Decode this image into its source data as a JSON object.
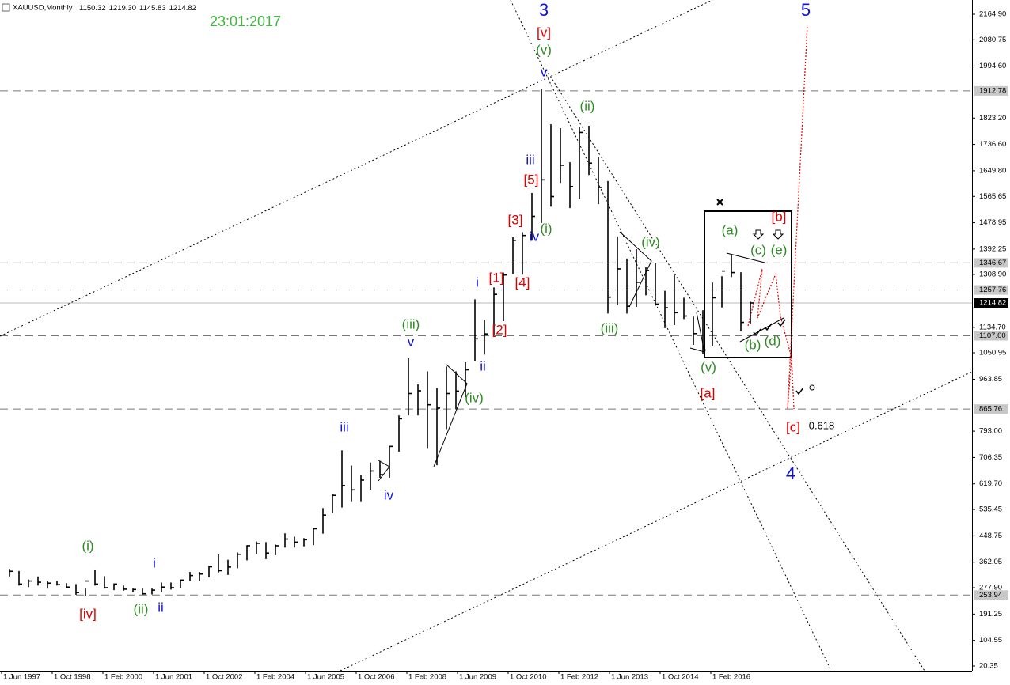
{
  "chart_data": {
    "type": "ohlc",
    "symbol": "XAUUSD,Monthly",
    "header_values": [
      "1150.32",
      "1219.30",
      "1145.83",
      "1214.82"
    ],
    "color": "#000000",
    "xlim": [
      "1 Jun 1997",
      "1 Dec 2022"
    ],
    "xticks": [
      "1 Jun 1997",
      "1 Oct 1998",
      "1 Feb 2000",
      "1 Jun 2001",
      "1 Oct 2002",
      "1 Feb 2004",
      "1 Jun 2005",
      "1 Oct 2006",
      "1 Feb 2008",
      "1 Jun 2009",
      "1 Oct 2010",
      "1 Feb 2012",
      "1 Jun 2013",
      "1 Oct 2014",
      "1 Feb 2016"
    ],
    "ylim": [
      4.74,
      2211.75
    ],
    "yticks": [
      {
        "value": 2164.9,
        "label": "2164.90"
      },
      {
        "value": 2080.75,
        "label": "2080.75"
      },
      {
        "value": 1994.6,
        "label": "1994.60"
      },
      {
        "value": 1823.2,
        "label": "1823.20"
      },
      {
        "value": 1736.6,
        "label": "1736.60"
      },
      {
        "value": 1649.8,
        "label": "1649.80"
      },
      {
        "value": 1565.65,
        "label": "1565.65"
      },
      {
        "value": 1478.95,
        "label": "1478.95"
      },
      {
        "value": 1392.25,
        "label": "1392.25"
      },
      {
        "value": 1308.9,
        "label": "1308.90"
      },
      {
        "value": 1134.7,
        "label": "1134.70"
      },
      {
        "value": 1050.95,
        "label": "1050.95"
      },
      {
        "value": 963.85,
        "label": "963.85"
      },
      {
        "value": 793,
        "label": "793.00"
      },
      {
        "value": 706.35,
        "label": "706.35"
      },
      {
        "value": 619.7,
        "label": "619.70"
      },
      {
        "value": 535.45,
        "label": "535.45"
      },
      {
        "value": 448.75,
        "label": "448.75"
      },
      {
        "value": 362.05,
        "label": "362.05"
      },
      {
        "value": 277.9,
        "label": "277.90"
      },
      {
        "value": 191.25,
        "label": "191.25"
      },
      {
        "value": 104.55,
        "label": "104.55"
      },
      {
        "value": 20.35,
        "label": "20.35"
      }
    ],
    "levels": [
      {
        "value": 1912.78,
        "label": "1912.78"
      },
      {
        "value": 1346.67,
        "label": "1346.67"
      },
      {
        "value": 1257.76,
        "label": "1257.76"
      },
      {
        "value": 1107,
        "label": "1107.00"
      },
      {
        "value": 865.76,
        "label": "865.76"
      },
      {
        "value": 253.94,
        "label": "253.94"
      }
    ],
    "current_price": {
      "value": 1214.82,
      "label": "1214.82"
    },
    "x": [
      "1 Jul 1997",
      "1 Oct 1997",
      "1 Jan 1998",
      "1 Apr 1998",
      "1 Jul 1998",
      "1 Oct 1998",
      "1 Jan 1999",
      "1 Apr 1999",
      "1 Jul 1999",
      "1 Oct 1999",
      "1 Jan 2000",
      "1 Apr 2000",
      "1 Jul 2000",
      "1 Oct 2000",
      "1 Jan 2001",
      "1 Apr 2001",
      "1 Jul 2001",
      "1 Oct 2001",
      "1 Jan 2002",
      "1 Apr 2002",
      "1 Jul 2002",
      "1 Oct 2002",
      "1 Jan 2003",
      "1 Apr 2003",
      "1 Jul 2003",
      "1 Oct 2003",
      "1 Jan 2004",
      "1 Apr 2004",
      "1 Jul 2004",
      "1 Oct 2004",
      "1 Jan 2005",
      "1 Apr 2005",
      "1 Jul 2005",
      "1 Oct 2005",
      "1 Jan 2006",
      "1 Apr 2006",
      "1 Jul 2006",
      "1 Oct 2006",
      "1 Jan 2007",
      "1 Apr 2007",
      "1 Jul 2007",
      "1 Oct 2007",
      "1 Jan 2008",
      "1 Apr 2008",
      "1 Jul 2008",
      "1 Oct 2008",
      "1 Jan 2009",
      "1 Apr 2009",
      "1 Jul 2009",
      "1 Oct 2009",
      "1 Jan 2010",
      "1 Apr 2010",
      "1 Jul 2010",
      "1 Oct 2010",
      "1 Jan 2011",
      "1 Apr 2011",
      "1 Jul 2011",
      "1 Oct 2011",
      "1 Jan 2012",
      "1 Apr 2012",
      "1 Jul 2012",
      "1 Oct 2012",
      "1 Jan 2013",
      "1 Apr 2013",
      "1 Jul 2013",
      "1 Oct 2013",
      "1 Jan 2014",
      "1 Apr 2014",
      "1 Jul 2014",
      "1 Oct 2014",
      "1 Jan 2015",
      "1 Apr 2015",
      "1 Jul 2015",
      "1 Oct 2015",
      "1 Jan 2016",
      "1 Apr 2016",
      "1 Jul 2016",
      "1 Oct 2016",
      "1 Jan 2017"
    ],
    "high": [
      340,
      333,
      305,
      315,
      300,
      300,
      293,
      290,
      275,
      338,
      316,
      292,
      285,
      275,
      275,
      275,
      295,
      295,
      305,
      330,
      330,
      350,
      388,
      370,
      394,
      418,
      430,
      428,
      420,
      457,
      446,
      441,
      475,
      540,
      585,
      730,
      680,
      650,
      690,
      695,
      745,
      845,
      1033,
      947,
      990,
      935,
      1006,
      990,
      1020,
      1227,
      1160,
      1266,
      1315,
      1431,
      1448,
      1577,
      1920,
      1803,
      1790,
      1678,
      1795,
      1798,
      1696,
      1616,
      1434,
      1361,
      1392,
      1332,
      1345,
      1255,
      1307,
      1232,
      1170,
      1191,
      1282,
      1303,
      1375,
      1316,
      1219
    ],
    "low": [
      315,
      285,
      280,
      285,
      275,
      285,
      278,
      255,
      252,
      285,
      275,
      270,
      268,
      263,
      255,
      256,
      265,
      272,
      278,
      300,
      300,
      312,
      328,
      320,
      342,
      368,
      390,
      372,
      385,
      410,
      410,
      414,
      418,
      456,
      524,
      542,
      560,
      560,
      600,
      640,
      640,
      725,
      845,
      845,
      735,
      681,
      800,
      865,
      905,
      1025,
      1045,
      1110,
      1155,
      1310,
      1308,
      1420,
      1478,
      1532,
      1610,
      1527,
      1557,
      1636,
      1540,
      1180,
      1207,
      1180,
      1202,
      1240,
      1206,
      1132,
      1142,
      1162,
      1077,
      1046,
      1072,
      1200,
      1300,
      1122,
      1145
    ],
    "close": [
      332,
      290,
      300,
      296,
      293,
      288,
      280,
      262,
      300,
      290,
      278,
      290,
      273,
      272,
      258,
      270,
      280,
      278,
      303,
      318,
      323,
      347,
      334,
      346,
      388,
      416,
      424,
      392,
      416,
      438,
      428,
      436,
      472,
      517,
      582,
      614,
      600,
      632,
      662,
      650,
      743,
      834,
      917,
      926,
      880,
      869,
      917,
      925,
      995,
      1097,
      1113,
      1243,
      1307,
      1421,
      1437,
      1500,
      1620,
      1565,
      1668,
      1598,
      1776,
      1675,
      1595,
      1234,
      1327,
      1204,
      1283,
      1322,
      1211,
      1199,
      1183,
      1172,
      1114,
      1060,
      1232,
      1320,
      1315,
      1151,
      1215
    ],
    "annotations": [
      {
        "text": "23:01:2017",
        "color": "#3cb83c"
      },
      {
        "text": "3",
        "color": "#1010d8"
      },
      {
        "text": "5",
        "color": "#1010d8"
      },
      {
        "text": "[v]",
        "color": "#e00000"
      },
      {
        "text": "(v)",
        "color": "#2e8b22"
      },
      {
        "text": "v",
        "color": "#1010d8"
      },
      {
        "text": "(ii)",
        "color": "#2e8b22"
      },
      {
        "text": "iii",
        "color": "#1010d8"
      },
      {
        "text": "[5]",
        "color": "#e00000"
      },
      {
        "text": "[3]",
        "color": "#e00000"
      },
      {
        "text": "iv",
        "color": "#1010d8"
      },
      {
        "text": "(i)",
        "color": "#2e8b22"
      },
      {
        "text": "[1]",
        "color": "#e00000"
      },
      {
        "text": "i",
        "color": "#1010d8"
      },
      {
        "text": "[4]",
        "color": "#e00000"
      },
      {
        "text": "[2]",
        "color": "#e00000"
      },
      {
        "text": "(iii)",
        "color": "#2e8b22"
      },
      {
        "text": "v",
        "color": "#1010d8"
      },
      {
        "text": "ii",
        "color": "#1010d8"
      },
      {
        "text": "(iv)",
        "color": "#2e8b22"
      },
      {
        "text": "iii",
        "color": "#1010d8"
      },
      {
        "text": "iv",
        "color": "#1010d8"
      },
      {
        "text": "(i)",
        "color": "#2e8b22"
      },
      {
        "text": "i",
        "color": "#1010d8"
      },
      {
        "text": "[iv]",
        "color": "#e00000"
      },
      {
        "text": "(ii)",
        "color": "#2e8b22"
      },
      {
        "text": "ii",
        "color": "#1010d8"
      },
      {
        "text": "(iv)",
        "color": "#2e8b22"
      },
      {
        "text": "(iii)",
        "color": "#2e8b22"
      },
      {
        "text": "(a)",
        "color": "#2e8b22"
      },
      {
        "text": "[b]",
        "color": "#e00000"
      },
      {
        "text": "(c)",
        "color": "#2e8b22"
      },
      {
        "text": "(e)",
        "color": "#2e8b22"
      },
      {
        "text": "(b)",
        "color": "#2e8b22"
      },
      {
        "text": "(d)",
        "color": "#2e8b22"
      },
      {
        "text": "(v)",
        "color": "#2e8b22"
      },
      {
        "text": "[a]",
        "color": "#e00000"
      },
      {
        "text": "[c]",
        "color": "#e00000"
      },
      {
        "text": "0.618",
        "color": "#000000"
      },
      {
        "text": "4",
        "color": "#1010d8"
      }
    ]
  }
}
